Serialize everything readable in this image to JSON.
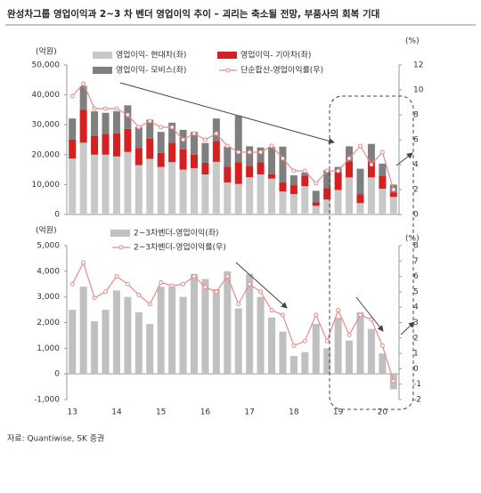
{
  "title": "완성차그룹 영업이익과 2~3 차 벤더 영업이익 추이 – 괴리는 축소될 전망, 부품사의 회복 기대",
  "source": "자료: Quantiwise, SK 증권",
  "chart_data": [
    {
      "type": "bar",
      "stacked": true,
      "y_unit": "(억원)",
      "y2_unit": "(%)",
      "ylim": [
        0,
        50000
      ],
      "yticks": [
        0,
        {
          "value": 10000,
          "label": "10,000"
        },
        {
          "value": 20000,
          "label": "20,000"
        },
        {
          "value": 30000,
          "label": "30,000"
        },
        {
          "value": 40000,
          "label": "40,000"
        },
        {
          "value": 50000,
          "label": "50,000"
        }
      ],
      "y2lim": [
        0,
        12
      ],
      "y2ticks": [
        0,
        2,
        4,
        6,
        8,
        10,
        12
      ],
      "series": [
        {
          "name": "영업이익- 현대차(좌)",
          "color": "#c8c8c8",
          "values": [
            18700,
            24000,
            20000,
            20000,
            19400,
            20900,
            16500,
            18600,
            15900,
            17500,
            15000,
            15500,
            13400,
            17600,
            10700,
            10200,
            12500,
            13400,
            12000,
            7700,
            6800,
            9500,
            2900,
            5000,
            8200,
            12400,
            3800,
            12400,
            8600,
            5900
          ]
        },
        {
          "name": "영업이익- 기아차(좌)",
          "color": "#d42020",
          "values": [
            6400,
            11000,
            6300,
            7000,
            7700,
            7700,
            5700,
            6700,
            4700,
            6500,
            6800,
            4500,
            3900,
            7000,
            5200,
            7300,
            3800,
            4000,
            1500,
            3000,
            3000,
            3500,
            1200,
            3800,
            5900,
            5300,
            2900,
            5200,
            4400,
            1500
          ]
        },
        {
          "name": "영업이익- 모비스(좌)",
          "color": "#7f7f7f",
          "values": [
            7000,
            8000,
            8200,
            7000,
            7400,
            7900,
            7000,
            6400,
            7000,
            6700,
            6500,
            7600,
            6600,
            7500,
            6800,
            15500,
            6500,
            5000,
            9100,
            12000,
            3300,
            1000,
            3800,
            6000,
            1800,
            5100,
            8600,
            6000,
            4000,
            2600
          ]
        },
        {
          "name": "단순합산-영업이익률(우)",
          "color": "#e88a8a",
          "axis": "y2",
          "values": [
            9.5,
            10.5,
            8.5,
            8.5,
            8.5,
            8.0,
            7.0,
            7.5,
            7.0,
            7.0,
            6.0,
            6.5,
            6.0,
            6.5,
            5.5,
            5.0,
            5.0,
            5.0,
            5.5,
            4.5,
            3.5,
            3.5,
            2.5,
            3.5,
            3.5,
            4.5,
            5.5,
            4.0,
            5.0,
            2.0
          ]
        }
      ]
    },
    {
      "type": "bar",
      "stacked": false,
      "y_unit": "(억원)",
      "y2_unit": "(%)",
      "categories": [
        "13",
        null,
        null,
        null,
        "14",
        null,
        null,
        null,
        "15",
        null,
        null,
        null,
        "16",
        null,
        null,
        null,
        "17",
        null,
        null,
        null,
        "18",
        null,
        null,
        null,
        "19",
        null,
        null,
        null,
        "20",
        null
      ],
      "ylim": [
        -1000,
        5000
      ],
      "yticks": [
        {
          "value": -1000,
          "label": "-1,000"
        },
        0,
        {
          "value": 1000,
          "label": "1,000"
        },
        {
          "value": 2000,
          "label": "2,000"
        },
        {
          "value": 3000,
          "label": "3,000"
        },
        {
          "value": 4000,
          "label": "4,000"
        },
        {
          "value": 5000,
          "label": "5,000"
        }
      ],
      "y2lim": [
        -2,
        8
      ],
      "y2ticks": [
        -2,
        -1,
        0,
        1,
        2,
        3,
        4,
        5,
        6,
        7,
        8
      ],
      "series": [
        {
          "name": "2~3차벤더-영업이익(좌)",
          "color": "#c0c0c0",
          "values": [
            2500,
            3400,
            2050,
            2500,
            3250,
            3000,
            2400,
            1950,
            3400,
            3400,
            3000,
            3900,
            3700,
            3300,
            4000,
            2550,
            3900,
            3000,
            2200,
            1650,
            700,
            850,
            1950,
            1000,
            2200,
            1300,
            2400,
            1750,
            800,
            -600
          ]
        },
        {
          "name": "2~3차벤더-영업이익률(우)",
          "color": "#e88a8a",
          "axis": "y2",
          "values": [
            5.5,
            6.9,
            4.6,
            5.0,
            6.0,
            5.5,
            4.8,
            4.2,
            5.6,
            5.4,
            5.5,
            6.0,
            5.3,
            5.0,
            6.0,
            4.2,
            5.5,
            5.0,
            3.8,
            3.5,
            1.5,
            1.8,
            3.5,
            1.8,
            3.8,
            2.2,
            3.5,
            3.2,
            1.5,
            -0.8
          ]
        }
      ]
    }
  ]
}
